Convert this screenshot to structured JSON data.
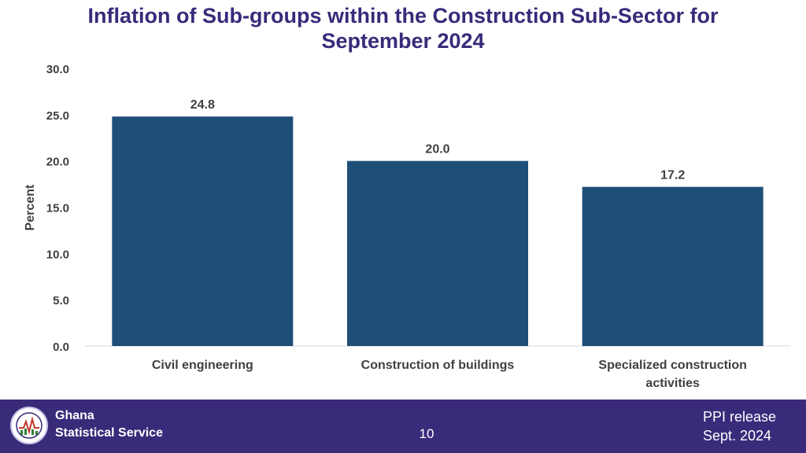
{
  "slide": {
    "title_line1": "Inflation of Sub-groups within the Construction Sub-Sector for",
    "title_line2": "September 2024",
    "page_number": "10"
  },
  "footer": {
    "org_line1": "Ghana",
    "org_line2": "Statistical Service",
    "release_line1": "PPI release",
    "release_line2": "Sept. 2024",
    "logo_text": "STATISTICAL SERVICE GHANA"
  },
  "colors": {
    "bar": "#1f4e79",
    "title": "#3a2a7a",
    "footer": "#3a2a7a"
  },
  "chart_data": {
    "type": "bar",
    "title": "Inflation of Sub-groups within the Construction Sub-Sector for September 2024",
    "categories": [
      [
        "Civil engineering"
      ],
      [
        "Construction of buildings"
      ],
      [
        "Specialized construction",
        "activities"
      ]
    ],
    "values": [
      24.8,
      20.0,
      17.2
    ],
    "value_labels": [
      "24.8",
      "20.0",
      "17.2"
    ],
    "xlabel": "",
    "ylabel": "Percent",
    "ylim": [
      0,
      30
    ],
    "yticks": [
      "0.0",
      "5.0",
      "10.0",
      "15.0",
      "20.0",
      "25.0",
      "30.0"
    ],
    "grid": false,
    "legend": "none"
  }
}
